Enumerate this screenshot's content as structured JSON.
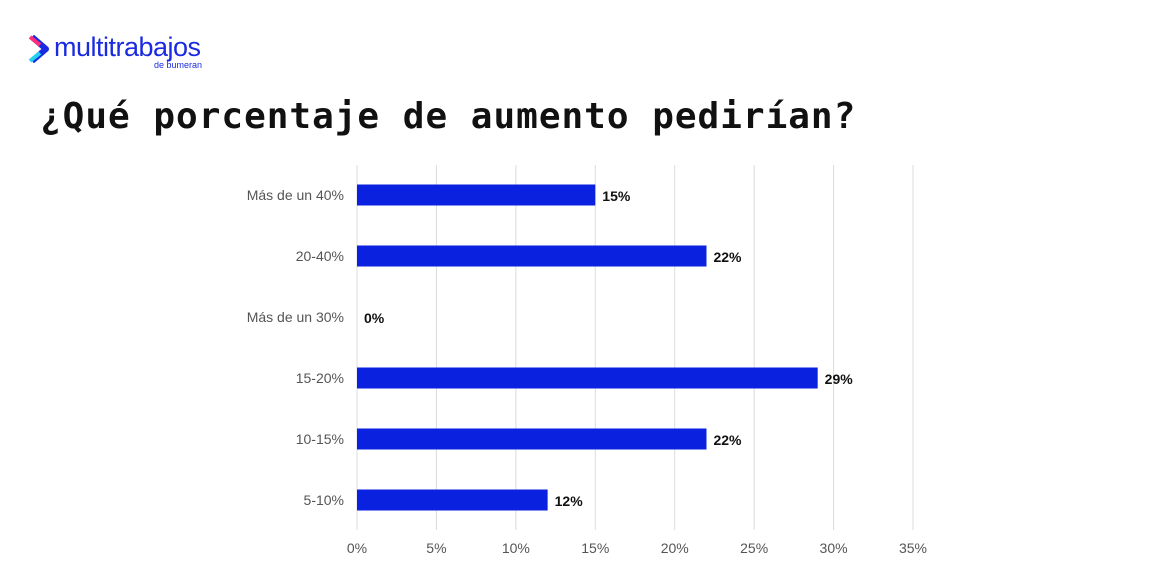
{
  "logo": {
    "text": "multitrabajos",
    "sub": "de bumeran"
  },
  "title": "¿Qué porcentaje de aumento pedirían?",
  "chart_data": {
    "type": "bar",
    "orientation": "horizontal",
    "title": "¿Qué porcentaje de aumento pedirían?",
    "categories": [
      "Más de un 40%",
      "20-40%",
      "Más de un 30%",
      "15-20%",
      "10-15%",
      "5-10%"
    ],
    "values": [
      15,
      22,
      0,
      29,
      22,
      12
    ],
    "data_labels": [
      "15%",
      "22%",
      "0%",
      "29%",
      "22%",
      "12%"
    ],
    "xlim": [
      0,
      35
    ],
    "xticks": [
      0,
      5,
      10,
      15,
      20,
      25,
      30,
      35
    ],
    "xtick_labels": [
      "0%",
      "5%",
      "10%",
      "15%",
      "20%",
      "25%",
      "30%",
      "35%"
    ],
    "grid": true,
    "bar_color": "#0a22e0"
  }
}
